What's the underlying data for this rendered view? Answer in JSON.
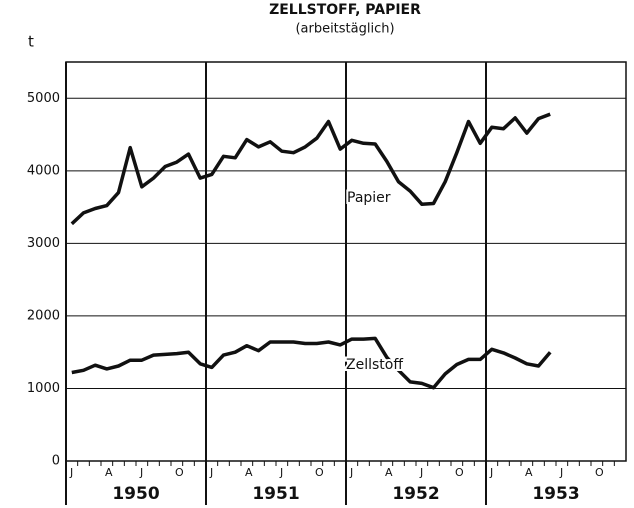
{
  "chart_data": {
    "type": "line",
    "title": "ZELLSTOFF, PAPIER",
    "subtitle": "(arbeitstäglich)",
    "y_label": "t",
    "categories": [
      "J",
      null,
      null,
      "A",
      null,
      null,
      "J",
      null,
      null,
      "O",
      null,
      null,
      "J",
      null,
      null,
      "A",
      null,
      null,
      "J",
      null,
      null,
      "O",
      null,
      null,
      "J",
      null,
      null,
      "A",
      null,
      null,
      "J",
      null,
      null,
      "O",
      null,
      null,
      "J",
      null,
      null,
      "A",
      null,
      null,
      "J",
      null,
      null,
      "O",
      null,
      null
    ],
    "years": [
      "1950",
      "1951",
      "1952",
      "1953"
    ],
    "series": [
      {
        "name": "Papier",
        "color": "#111111",
        "values": [
          3270,
          3420,
          3480,
          3520,
          3700,
          4320,
          3780,
          3900,
          4060,
          4120,
          4230,
          3900,
          3950,
          4200,
          4180,
          4430,
          4330,
          4400,
          4270,
          4250,
          4330,
          4450,
          4680,
          4300,
          4420,
          4380,
          4370,
          4130,
          3850,
          3720,
          3540,
          3550,
          3850,
          4250,
          4680,
          4380,
          4600,
          4580,
          4730,
          4520,
          4720,
          4780,
          null,
          null,
          null,
          null,
          null,
          null
        ]
      },
      {
        "name": "Zellstoff",
        "color": "#111111",
        "values": [
          1220,
          1250,
          1320,
          1270,
          1310,
          1390,
          1390,
          1460,
          1470,
          1480,
          1500,
          1340,
          1290,
          1460,
          1500,
          1590,
          1520,
          1640,
          1640,
          1640,
          1620,
          1620,
          1640,
          1600,
          1680,
          1680,
          1690,
          1430,
          1250,
          1090,
          1070,
          1010,
          1200,
          1330,
          1400,
          1400,
          1540,
          1490,
          1420,
          1340,
          1310,
          1500,
          null,
          null,
          null,
          null,
          null,
          null
        ]
      }
    ],
    "ylim": [
      0,
      5500
    ],
    "yticks": [
      0,
      1000,
      2000,
      3000,
      4000,
      5000
    ],
    "grid": true
  }
}
